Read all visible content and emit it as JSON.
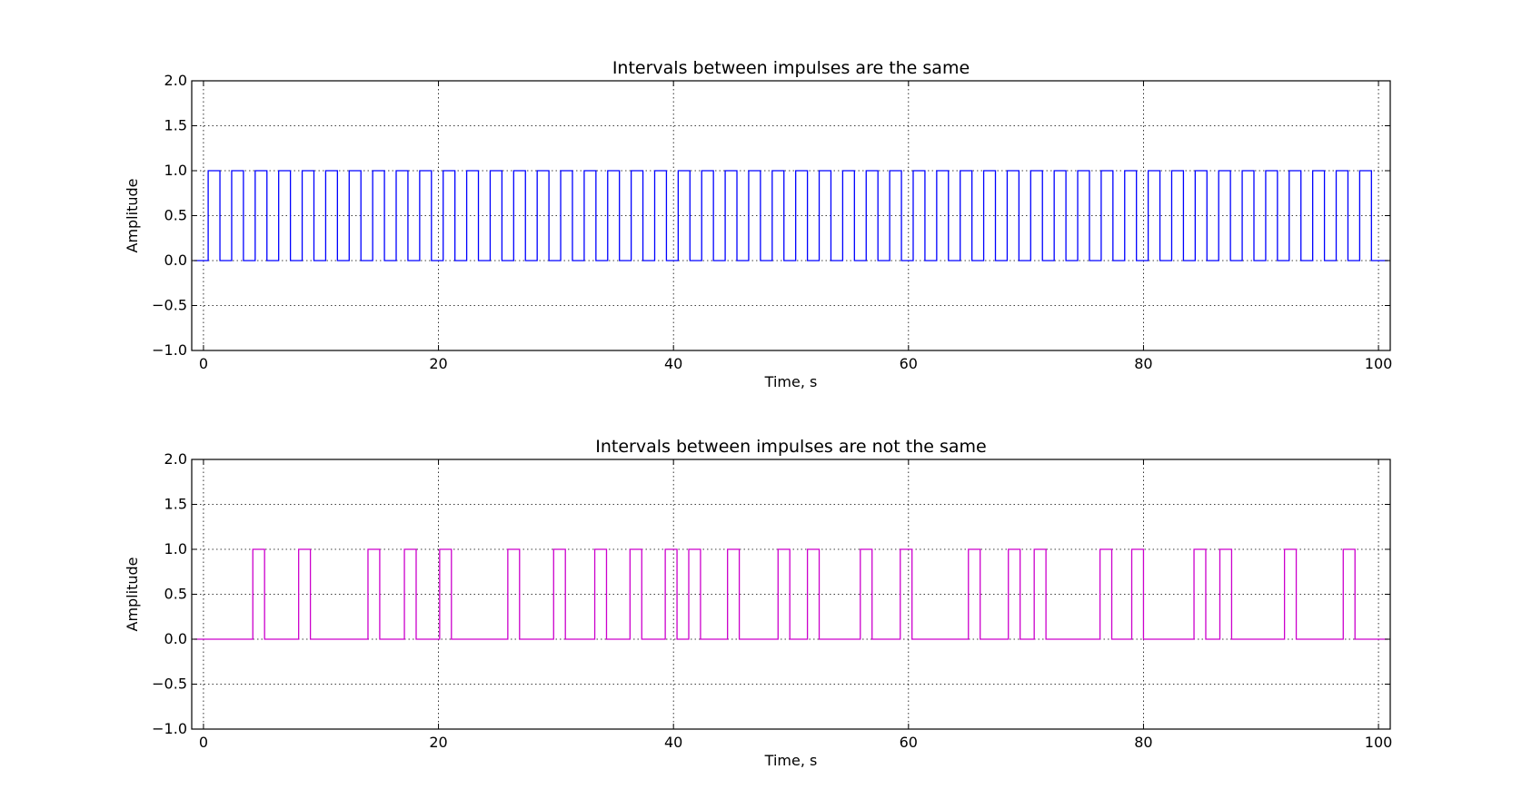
{
  "chart_data": [
    {
      "type": "line",
      "title": "Intervals between impulses are  the same",
      "xlabel": "Time, s",
      "ylabel": "Amplitude",
      "xlim": [
        -1,
        101
      ],
      "ylim": [
        -1.0,
        2.0
      ],
      "xticks": [
        "0",
        "20",
        "40",
        "60",
        "80",
        "100"
      ],
      "yticks": [
        "2.0",
        "1.5",
        "1.0",
        "0.5",
        "0.0",
        "−0.5",
        "−1.0"
      ],
      "grid": true,
      "line_color": "#0000ff",
      "step": true,
      "pulse_starts": [
        0.4,
        2.4,
        4.4,
        6.4,
        8.4,
        10.4,
        12.4,
        14.4,
        16.4,
        18.4,
        20.4,
        22.4,
        24.4,
        26.4,
        28.4,
        30.4,
        32.4,
        34.4,
        36.4,
        38.4,
        40.4,
        42.4,
        44.4,
        46.4,
        48.4,
        50.4,
        52.4,
        54.4,
        56.4,
        58.4,
        60.4,
        62.4,
        64.4,
        66.4,
        68.4,
        70.4,
        72.4,
        74.4,
        76.4,
        78.4,
        80.4,
        82.4,
        84.4,
        86.4,
        88.4,
        90.4,
        92.4,
        94.4,
        96.4,
        98.4
      ],
      "pulse_width": 1.0,
      "pulse_amplitude": 1.0,
      "x_range": [
        -0.8,
        100.8
      ]
    },
    {
      "type": "line",
      "title": "Intervals between impulses are not the same",
      "xlabel": "Time, s",
      "ylabel": "Amplitude",
      "xlim": [
        -1,
        101
      ],
      "ylim": [
        -1.0,
        2.0
      ],
      "xticks": [
        "0",
        "20",
        "40",
        "60",
        "80",
        "100"
      ],
      "yticks": [
        "2.0",
        "1.5",
        "1.0",
        "0.5",
        "0.0",
        "−0.5",
        "−1.0"
      ],
      "grid": true,
      "line_color": "#cc00cc",
      "step": true,
      "pulse_starts": [
        4.2,
        8.1,
        14.0,
        17.1,
        20.1,
        25.9,
        29.8,
        33.3,
        36.3,
        39.3,
        41.3,
        44.6,
        48.9,
        51.4,
        55.9,
        59.3,
        65.1,
        68.5,
        70.7,
        76.3,
        79.0,
        84.3,
        86.5,
        92.0,
        97.0
      ],
      "pulse_width": 1.0,
      "pulse_amplitude": 1.0,
      "x_range": [
        -0.8,
        100.8
      ]
    }
  ]
}
